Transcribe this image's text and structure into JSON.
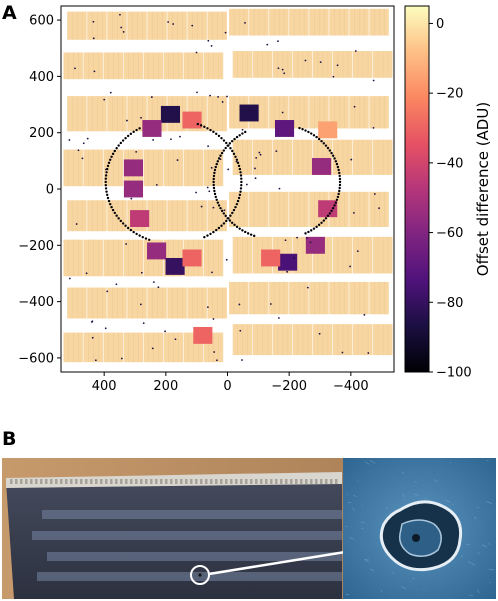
{
  "panel_a": {
    "letter": "A"
  },
  "panel_b": {
    "letter": "B"
  },
  "chart_data": {
    "type": "heatmap",
    "title": "",
    "xlabel": "",
    "ylabel": "",
    "xlim": [
      540,
      -540
    ],
    "ylim": [
      -650,
      650
    ],
    "x_ticks": [
      400,
      200,
      0,
      -200,
      -400
    ],
    "y_ticks": [
      600,
      400,
      200,
      0,
      -200,
      -400,
      -600
    ],
    "x_tick_labels": [
      "400",
      "200",
      "0",
      "−200",
      "−400"
    ],
    "y_tick_labels": [
      "600",
      "400",
      "200",
      "0",
      "−200",
      "−400",
      "−600"
    ],
    "colorbar": {
      "label": "Offset difference (ADU)",
      "range": [
        -100,
        5
      ],
      "ticks": [
        0,
        -20,
        -40,
        -60,
        -80,
        -100
      ],
      "tick_labels": [
        "0",
        "−20",
        "−40",
        "−60",
        "−80",
        "−100"
      ],
      "colormap": "magma"
    },
    "colors": {
      "baseline": "#f7d6a2",
      "medium": "#e8646a",
      "deep": "#8a2a78"
    },
    "highlighted_regions": [
      {
        "x": 185,
        "y": 265,
        "value": -85
      },
      {
        "x": 245,
        "y": 215,
        "value": -55
      },
      {
        "x": 115,
        "y": 245,
        "value": -30
      },
      {
        "x": 305,
        "y": 75,
        "value": -55
      },
      {
        "x": 305,
        "y": 0,
        "value": -55
      },
      {
        "x": 285,
        "y": -105,
        "value": -45
      },
      {
        "x": 230,
        "y": -220,
        "value": -55
      },
      {
        "x": 170,
        "y": -275,
        "value": -80
      },
      {
        "x": 115,
        "y": -245,
        "value": -30
      },
      {
        "x": 80,
        "y": -520,
        "value": -30
      },
      {
        "x": -70,
        "y": 270,
        "value": -85
      },
      {
        "x": -185,
        "y": 215,
        "value": -70
      },
      {
        "x": -325,
        "y": 210,
        "value": -15
      },
      {
        "x": -305,
        "y": 80,
        "value": -55
      },
      {
        "x": -325,
        "y": -70,
        "value": -45
      },
      {
        "x": -285,
        "y": -200,
        "value": -55
      },
      {
        "x": -195,
        "y": -260,
        "value": -75
      },
      {
        "x": -140,
        "y": -245,
        "value": -30
      }
    ],
    "ring_arcs": [
      {
        "cx": 175,
        "cy": 25,
        "r": 220
      },
      {
        "cx": -160,
        "cy": 25,
        "r": 205
      }
    ]
  },
  "photo": {
    "colors": {
      "wall": "#b28a62",
      "frame": "#9c8d7c",
      "sensor": "#3a4050",
      "stripe": "#6e7c98",
      "marker": "#ffffff",
      "micro_bg": "#3f79a4"
    },
    "icons": [
      "sensor-photo",
      "damage-circle-marker",
      "arrow-icon",
      "damage-micrograph"
    ]
  }
}
